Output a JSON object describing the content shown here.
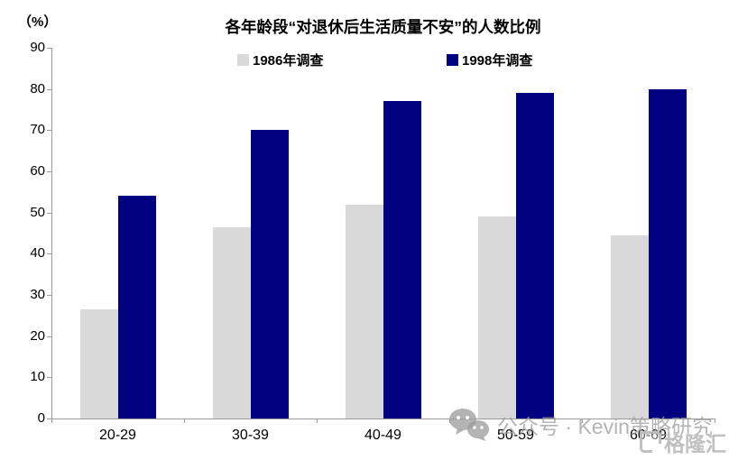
{
  "chart_data": {
    "type": "bar",
    "title": "各年龄段“对退休后生活质量不安”的人数比例",
    "unit_label": "（%）",
    "categories": [
      "20-29",
      "30-39",
      "40-49",
      "50-59",
      "60-69"
    ],
    "series": [
      {
        "name": "1986年调查",
        "color": "#d9d9d9",
        "values": [
          26.5,
          46.5,
          52,
          49,
          44.5
        ]
      },
      {
        "name": "1998年调查",
        "color": "#000080",
        "values": [
          54,
          70,
          77,
          79,
          80
        ]
      }
    ],
    "ylim": [
      0,
      90
    ],
    "yticks": [
      0,
      10,
      20,
      30,
      40,
      50,
      60,
      70,
      80,
      90
    ],
    "grid": false,
    "legend_position": "top-center",
    "axis_color": "#9b9b9b"
  },
  "watermarks": {
    "wechat_label": "公众号 · Kevin策略研究",
    "wechat_icon": "wechat-icon",
    "logo_label": "格隆汇"
  }
}
